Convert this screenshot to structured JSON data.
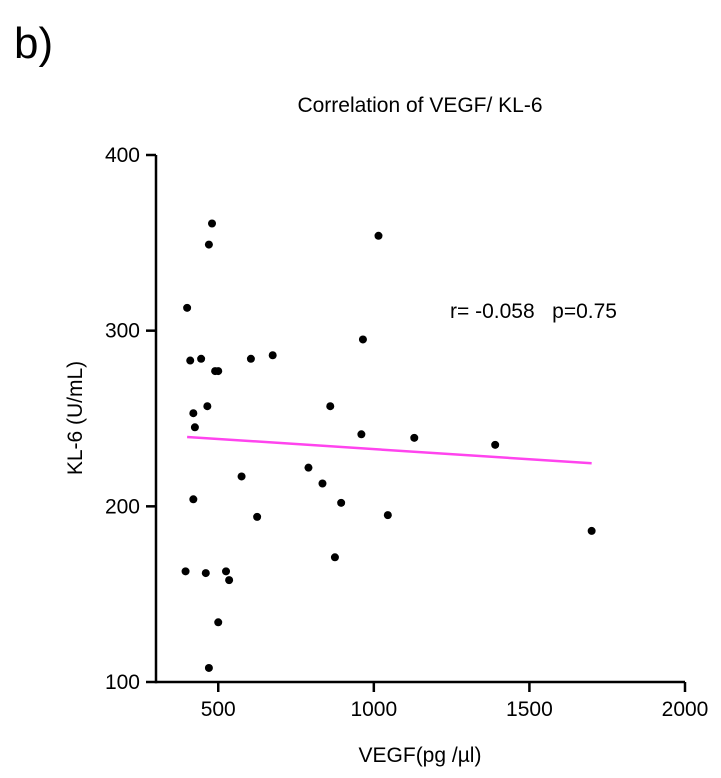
{
  "panel_label": "b)",
  "chart_data": {
    "type": "scatter",
    "title": "Correlation of VEGF/ KL-6",
    "xlabel": "VEGF(pg /µl)",
    "ylabel": "KL-6 (U/mL)",
    "xlim": [
      300,
      2000
    ],
    "ylim": [
      100,
      400
    ],
    "xticks": [
      500,
      1000,
      1500,
      2000
    ],
    "yticks": [
      100,
      200,
      300,
      400
    ],
    "xtick_labels": [
      "500",
      "1000",
      "1500",
      "2000"
    ],
    "ytick_labels": [
      "100",
      "200",
      "300",
      "400"
    ],
    "annotation": "r= -0.058   p=0.75",
    "point_color": "#000000",
    "fit_color": "#ff44ee",
    "fit_line": {
      "x": [
        400,
        1700
      ],
      "y": [
        239.5,
        224.5
      ]
    },
    "points": [
      {
        "x": 480,
        "y": 361
      },
      {
        "x": 470,
        "y": 349
      },
      {
        "x": 1015,
        "y": 354
      },
      {
        "x": 400,
        "y": 313
      },
      {
        "x": 965,
        "y": 295
      },
      {
        "x": 410,
        "y": 283
      },
      {
        "x": 445,
        "y": 284
      },
      {
        "x": 605,
        "y": 284
      },
      {
        "x": 675,
        "y": 286
      },
      {
        "x": 490,
        "y": 277
      },
      {
        "x": 500,
        "y": 277
      },
      {
        "x": 465,
        "y": 257
      },
      {
        "x": 420,
        "y": 253
      },
      {
        "x": 860,
        "y": 257
      },
      {
        "x": 425,
        "y": 245
      },
      {
        "x": 960,
        "y": 241
      },
      {
        "x": 1130,
        "y": 239
      },
      {
        "x": 1390,
        "y": 235
      },
      {
        "x": 575,
        "y": 217
      },
      {
        "x": 790,
        "y": 222
      },
      {
        "x": 835,
        "y": 213
      },
      {
        "x": 420,
        "y": 204
      },
      {
        "x": 895,
        "y": 202
      },
      {
        "x": 625,
        "y": 194
      },
      {
        "x": 1045,
        "y": 195
      },
      {
        "x": 1700,
        "y": 186
      },
      {
        "x": 875,
        "y": 171
      },
      {
        "x": 395,
        "y": 163
      },
      {
        "x": 460,
        "y": 162
      },
      {
        "x": 525,
        "y": 163
      },
      {
        "x": 535,
        "y": 158
      },
      {
        "x": 500,
        "y": 134
      },
      {
        "x": 470,
        "y": 108
      }
    ]
  }
}
